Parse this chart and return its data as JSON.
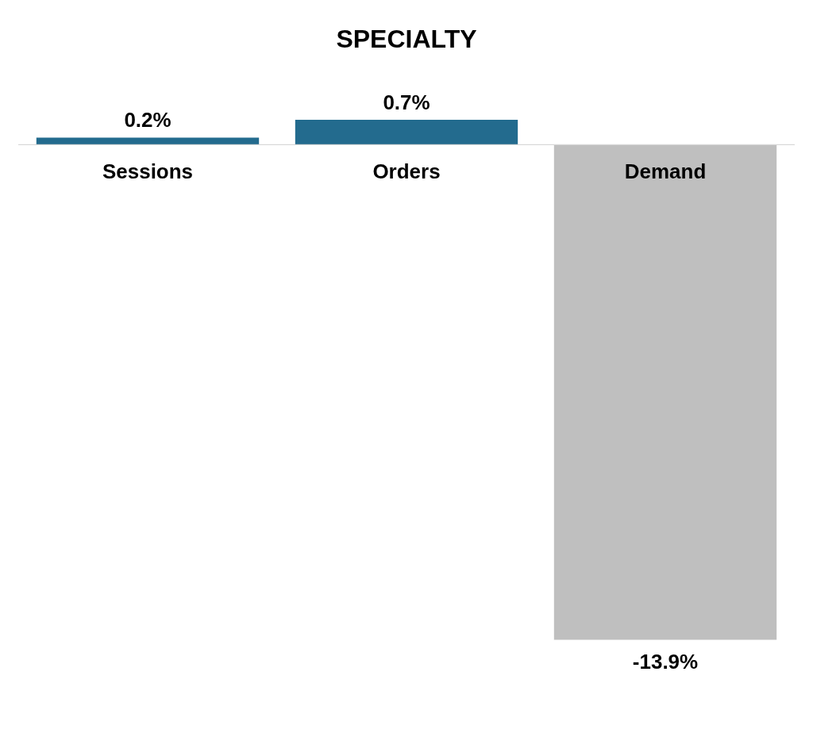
{
  "chart_data": {
    "type": "bar",
    "title": "SPECIALTY",
    "categories": [
      "Sessions",
      "Orders",
      "Demand"
    ],
    "values": [
      0.2,
      0.7,
      -13.9
    ],
    "colors": [
      "#236b8e",
      "#236b8e",
      "#bfbfbf"
    ],
    "value_labels": [
      "0.2%",
      "0.7%",
      "-13.9%"
    ]
  }
}
